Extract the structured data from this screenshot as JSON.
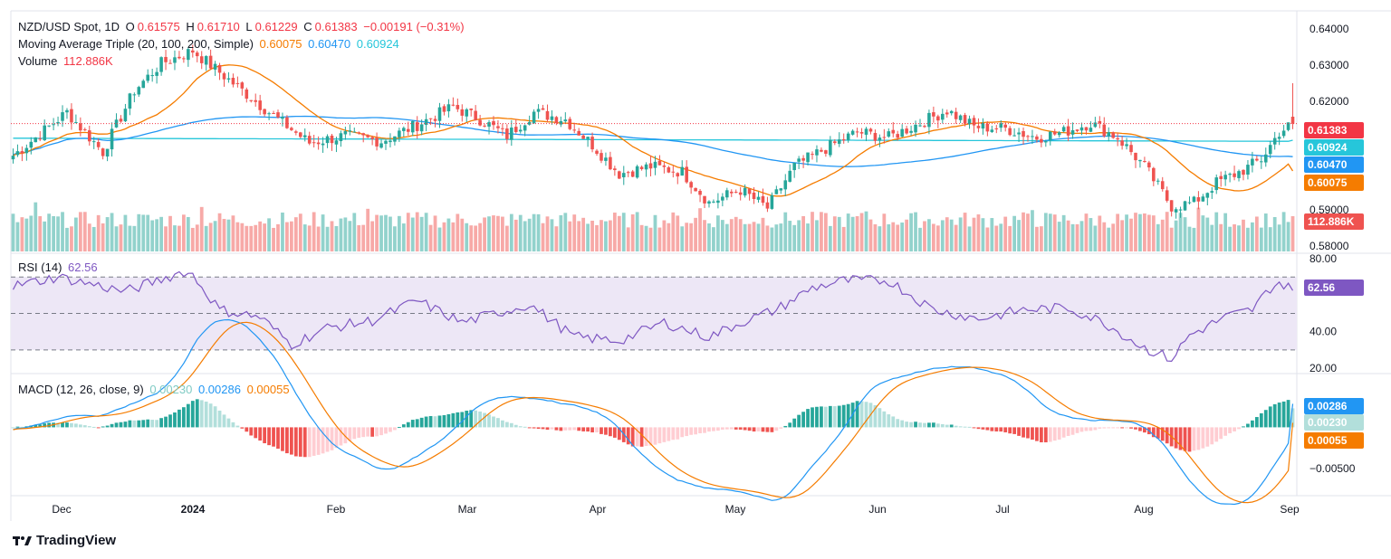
{
  "colors": {
    "up": "#26a69a",
    "down": "#ef5350",
    "up_vol": "#92d2cc",
    "down_vol": "#f7a9a7",
    "ma20": "#f57c00",
    "ma100": "#2196f3",
    "ma200": "#26c6da",
    "rsi": "#7e57c2",
    "rsi_band": "#ede7f6",
    "macd": "#2196f3",
    "signal": "#f57c00",
    "hist_up_strong": "#26a69a",
    "hist_up_weak": "#b2dfdb",
    "hist_down_strong": "#ef5350",
    "hist_down_weak": "#ffcdd2",
    "last_price": "#f23645"
  },
  "legend": {
    "symbol": "NZD/USD Spot, 1D",
    "o_label": "O",
    "open": "0.61575",
    "h_label": "H",
    "high": "0.61710",
    "l_label": "L",
    "low": "0.61229",
    "c_label": "C",
    "close": "0.61383",
    "change": "−0.00191 (−0.31%)",
    "ma_label": "Moving Average Triple (20, 100, 200, Simple)",
    "ma20": "0.60075",
    "ma100": "0.60470",
    "ma200": "0.60924",
    "volume_label": "Volume",
    "volume": "112.886K",
    "rsi_label": "RSI (14)",
    "rsi": "62.56",
    "macd_label": "MACD (12, 26, close, 9)",
    "macd_hist": "0.00230",
    "macd": "0.00286",
    "macd_signal": "0.00055"
  },
  "price_axis": {
    "labels": [
      "0.64000",
      "0.63000",
      "0.62000",
      "0.59000",
      "0.58000"
    ],
    "tags": [
      "0.61383",
      "0.60924",
      "0.60470",
      "0.60075",
      "112.886K"
    ]
  },
  "rsi_axis": {
    "labels": [
      "80.00",
      "40.00",
      "20.00"
    ],
    "tag": "62.56"
  },
  "macd_axis": {
    "labels": [
      "−0.00500"
    ],
    "tags": [
      "0.00286",
      "0.00230",
      "0.00055"
    ]
  },
  "time_axis": [
    "Dec",
    "2024",
    "Feb",
    "Mar",
    "Apr",
    "May",
    "Jun",
    "Jul",
    "Aug",
    "Sep"
  ],
  "branding": "TradingView",
  "chart_data": {
    "type": "candlestick",
    "title": "NZD/USD Spot, 1D",
    "price_range": [
      0.5785,
      0.6445
    ],
    "ohlc_anchor_closes": [
      [
        0,
        0.605
      ],
      [
        6,
        0.611
      ],
      [
        12,
        0.617
      ],
      [
        20,
        0.606
      ],
      [
        27,
        0.623
      ],
      [
        33,
        0.6305
      ],
      [
        40,
        0.634
      ],
      [
        46,
        0.628
      ],
      [
        52,
        0.622
      ],
      [
        58,
        0.616
      ],
      [
        66,
        0.6085
      ],
      [
        74,
        0.6105
      ],
      [
        82,
        0.609
      ],
      [
        90,
        0.6135
      ],
      [
        98,
        0.6185
      ],
      [
        104,
        0.615
      ],
      [
        110,
        0.6105
      ],
      [
        116,
        0.617
      ],
      [
        123,
        0.615
      ],
      [
        129,
        0.608
      ],
      [
        135,
        0.6
      ],
      [
        142,
        0.602
      ],
      [
        149,
        0.6005
      ],
      [
        155,
        0.592
      ],
      [
        162,
        0.5955
      ],
      [
        168,
        0.5905
      ],
      [
        174,
        0.602
      ],
      [
        181,
        0.607
      ],
      [
        188,
        0.6115
      ],
      [
        195,
        0.61
      ],
      [
        202,
        0.614
      ],
      [
        208,
        0.6175
      ],
      [
        214,
        0.613
      ],
      [
        221,
        0.6125
      ],
      [
        228,
        0.61
      ],
      [
        234,
        0.6115
      ],
      [
        240,
        0.614
      ],
      [
        246,
        0.61
      ],
      [
        252,
        0.602
      ],
      [
        258,
        0.591
      ],
      [
        263,
        0.592
      ],
      [
        268,
        0.5975
      ],
      [
        274,
        0.601
      ],
      [
        278,
        0.604
      ],
      [
        282,
        0.6115
      ],
      [
        285,
        0.6138
      ]
    ],
    "last": {
      "open": 0.61575,
      "high": 0.6171,
      "low": 0.61229,
      "close": 0.61383
    },
    "moving_averages": {
      "ma20_last": 0.60075,
      "ma100_last": 0.6047,
      "ma200_last": 0.60924
    },
    "rsi": {
      "range": [
        18,
        82
      ],
      "levels": [
        70,
        50,
        30
      ],
      "last": 62.56,
      "anchors": [
        [
          0,
          65
        ],
        [
          10,
          70
        ],
        [
          25,
          62
        ],
        [
          38,
          73
        ],
        [
          40,
          71
        ],
        [
          46,
          52
        ],
        [
          55,
          48
        ],
        [
          62,
          33
        ],
        [
          70,
          42
        ],
        [
          80,
          46
        ],
        [
          90,
          57
        ],
        [
          100,
          45
        ],
        [
          115,
          55
        ],
        [
          125,
          37
        ],
        [
          135,
          35
        ],
        [
          145,
          45
        ],
        [
          155,
          37
        ],
        [
          162,
          45
        ],
        [
          170,
          52
        ],
        [
          178,
          64
        ],
        [
          185,
          68
        ],
        [
          195,
          68
        ],
        [
          205,
          52
        ],
        [
          215,
          47
        ],
        [
          225,
          52
        ],
        [
          235,
          53
        ],
        [
          243,
          45
        ],
        [
          252,
          31
        ],
        [
          258,
          25
        ],
        [
          262,
          38
        ],
        [
          270,
          48
        ],
        [
          276,
          52
        ],
        [
          280,
          64
        ],
        [
          282,
          67
        ],
        [
          285,
          62.56
        ]
      ]
    },
    "macd": {
      "range": [
        -0.007,
        0.005
      ],
      "last_macd": 0.00286,
      "last_signal": 0.00055,
      "last_hist": 0.0023
    },
    "volume": {
      "last": "112.886K"
    },
    "x_ticks": [
      "Dec",
      "2024",
      "Feb",
      "Mar",
      "Apr",
      "May",
      "Jun",
      "Jul",
      "Aug",
      "Sep"
    ]
  }
}
